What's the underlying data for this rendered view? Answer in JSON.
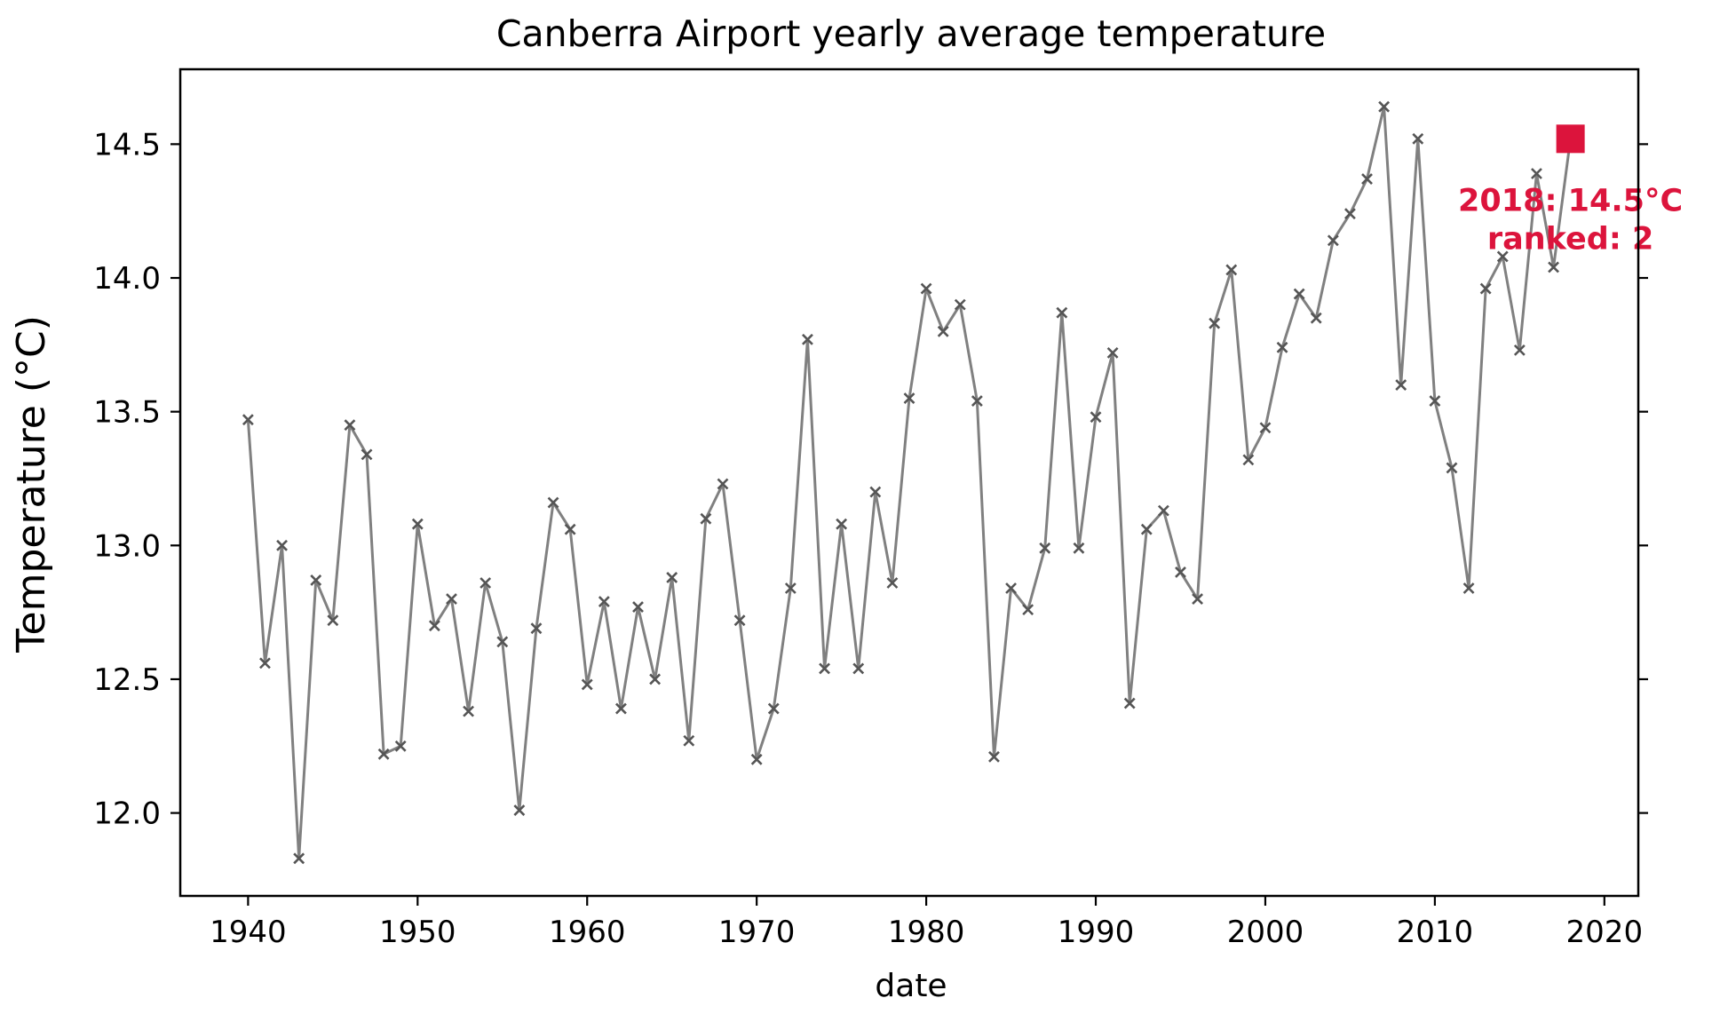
{
  "chart_data": {
    "type": "line",
    "title": "Canberra Airport yearly average temperature",
    "xlabel": "date",
    "ylabel": "Temperature (°C)",
    "xlim": [
      1936,
      2022
    ],
    "ylim": [
      11.69,
      14.78
    ],
    "x_ticks": [
      1940,
      1950,
      1960,
      1970,
      1980,
      1990,
      2000,
      2010,
      2020
    ],
    "y_ticks": [
      12.0,
      12.5,
      13.0,
      13.5,
      14.0,
      14.5
    ],
    "y_tick_labels": [
      "12.0",
      "12.5",
      "13.0",
      "13.5",
      "14.0",
      "14.5"
    ],
    "grid": false,
    "series": [
      {
        "line_color": "#808080",
        "marker": "x",
        "marker_color": "#555555",
        "x": [
          1940,
          1941,
          1942,
          1943,
          1944,
          1945,
          1946,
          1947,
          1948,
          1949,
          1950,
          1951,
          1952,
          1953,
          1954,
          1955,
          1956,
          1957,
          1958,
          1959,
          1960,
          1961,
          1962,
          1963,
          1964,
          1965,
          1966,
          1967,
          1968,
          1969,
          1970,
          1971,
          1972,
          1973,
          1974,
          1975,
          1976,
          1977,
          1978,
          1979,
          1980,
          1981,
          1982,
          1983,
          1984,
          1985,
          1986,
          1987,
          1988,
          1989,
          1990,
          1991,
          1992,
          1993,
          1994,
          1995,
          1996,
          1997,
          1998,
          1999,
          2000,
          2001,
          2002,
          2003,
          2004,
          2005,
          2006,
          2007,
          2008,
          2009,
          2010,
          2011,
          2012,
          2013,
          2014,
          2015,
          2016,
          2017,
          2018
        ],
        "y": [
          13.47,
          12.56,
          13.0,
          11.83,
          12.87,
          12.72,
          13.45,
          13.34,
          12.22,
          12.25,
          13.08,
          12.7,
          12.8,
          12.38,
          12.86,
          12.64,
          12.01,
          12.69,
          13.16,
          13.06,
          12.48,
          12.79,
          12.39,
          12.77,
          12.5,
          12.88,
          12.27,
          13.1,
          13.23,
          12.72,
          12.2,
          12.39,
          12.84,
          13.77,
          12.54,
          13.08,
          12.54,
          13.2,
          12.86,
          13.55,
          13.96,
          13.8,
          13.9,
          13.54,
          12.21,
          12.84,
          12.76,
          12.99,
          13.87,
          12.99,
          13.48,
          13.72,
          12.41,
          13.06,
          13.13,
          12.9,
          12.8,
          13.83,
          14.03,
          13.32,
          13.44,
          13.74,
          13.94,
          13.85,
          14.14,
          14.24,
          14.37,
          14.64,
          13.6,
          14.52,
          13.54,
          13.29,
          12.84,
          13.96,
          14.08,
          13.73,
          14.39,
          14.04,
          14.52
        ]
      }
    ],
    "highlight": {
      "x": 2018,
      "y": 14.52,
      "color": "#DC143C",
      "marker": "square",
      "label_line1": "2018: 14.5°C",
      "label_line2": "ranked: 2"
    }
  }
}
